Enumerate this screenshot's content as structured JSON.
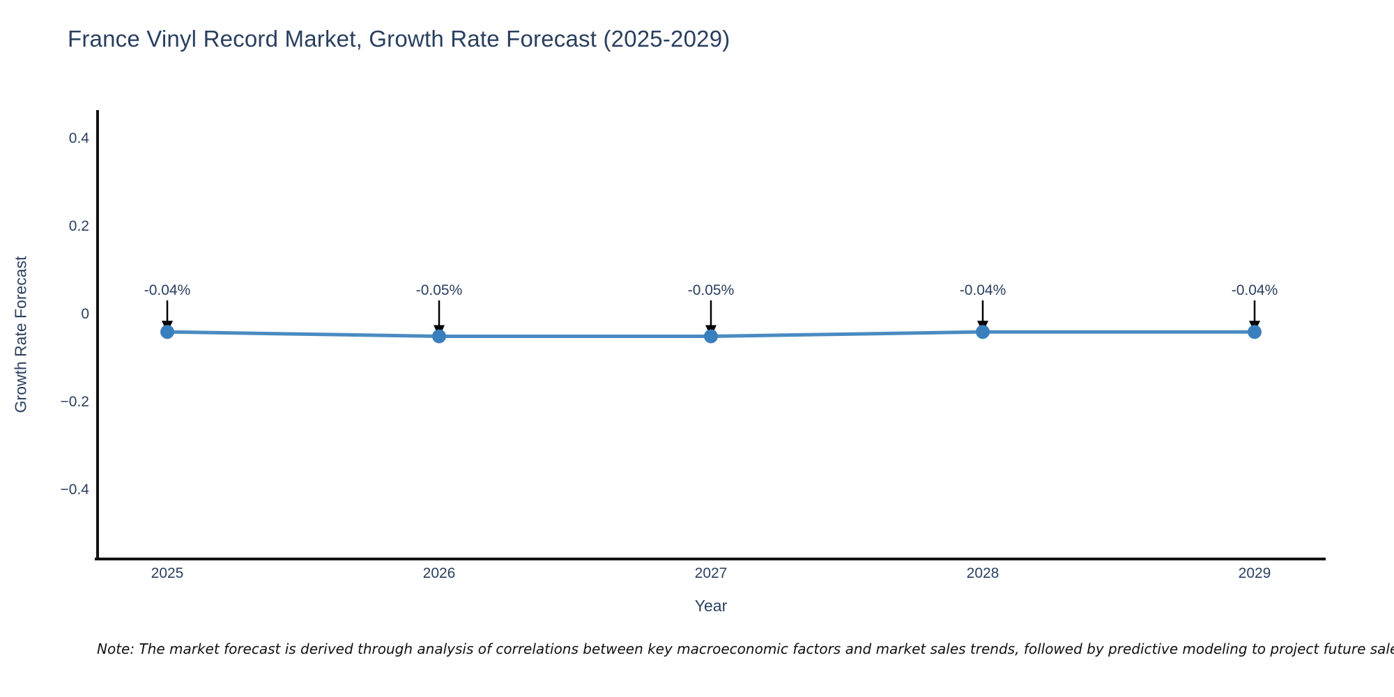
{
  "header": {
    "title": "France Vinyl Record Market, Growth Rate Forecast (2025-2029)"
  },
  "chart_data": {
    "type": "line",
    "title": "France Vinyl Record Market, Growth Rate Forecast (2025-2029)",
    "xlabel": "Year",
    "ylabel": "Growth Rate Forecast",
    "categories": [
      2025,
      2026,
      2027,
      2028,
      2029
    ],
    "xtick_labels": [
      "2025",
      "2026",
      "2027",
      "2028",
      "2029"
    ],
    "series": [
      {
        "name": "Growth Rate Forecast",
        "values": [
          -0.04,
          -0.05,
          -0.05,
          -0.04,
          -0.04
        ],
        "point_labels": [
          "-0.04%",
          "-0.05%",
          "-0.05%",
          "-0.04%",
          "-0.04%"
        ]
      }
    ],
    "yticks": [
      0.4,
      0.2,
      0,
      -0.2,
      -0.4
    ],
    "ytick_labels": [
      "0.4",
      "0.2",
      "0",
      "−0.2",
      "−0.4"
    ],
    "ylim": [
      -0.56,
      0.47
    ],
    "grid": false,
    "legend_position": "none",
    "annotations_style": "value label with black arrow pointing down to each marker",
    "colors": {
      "line": "#4a8bc2",
      "marker": "#3a7fbd",
      "arrow": "#000000",
      "text": "#2a3f5f",
      "axis_line": "#111111",
      "note_text": "#111111",
      "background": "#ffffff"
    }
  },
  "footnote": {
    "text": "Note: The market forecast is derived through analysis of correlations between key macroeconomic factors and market sales trends, followed by predictive modeling to project future sales"
  }
}
